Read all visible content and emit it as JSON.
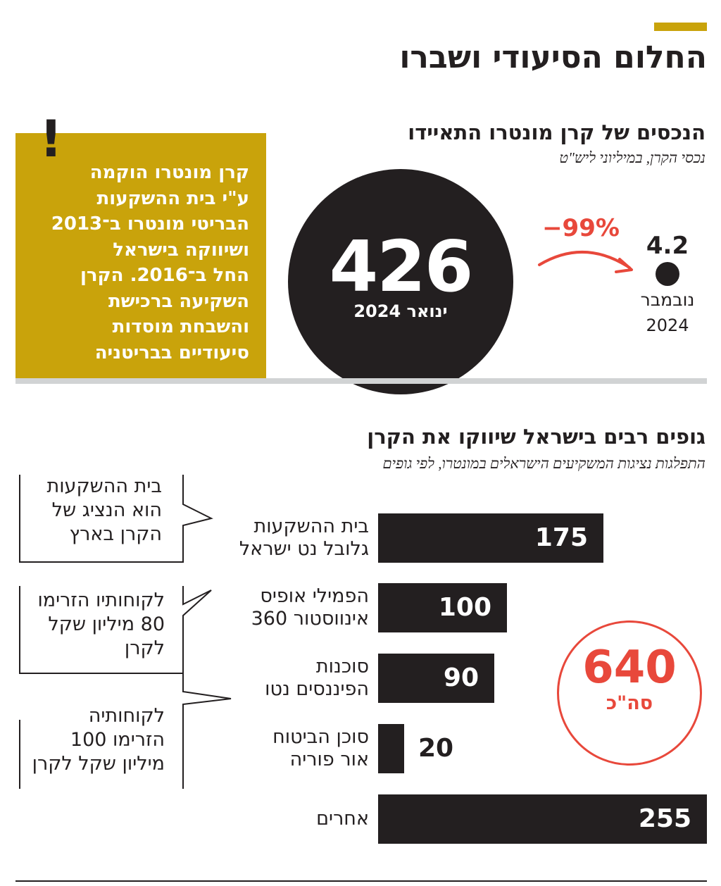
{
  "header": {
    "title": "החלום הסיעודי ושברו",
    "accent_color": "#c9a30b"
  },
  "info_box": {
    "exclamation": "!",
    "lines": [
      "קרן מונטרו הוקמה",
      "ע\"י בית ההשקעות",
      "הבריטי מונטרו ב־2013",
      "ושיווקה בישראל",
      "החל ב־2016. הקרן",
      "השקיעה ברכישת",
      "והשבחת מוסדות",
      "סיעודיים בבריטניה"
    ]
  },
  "section1": {
    "title": "הנכסים של קרן מונטרו התאיידו",
    "subtitle": "נכסי הקרן, במיליוני ליש\"ט"
  },
  "section2": {
    "title": "גופים רבים בישראל שיווקו את הקרן",
    "subtitle": "התפלגות נציגות המשקיעים הישראלים במונטרו, לפי גופים"
  },
  "callouts": [
    {
      "lines": [
        "בית ההשקעות",
        "הוא הנציג של",
        "הקרן בארץ"
      ]
    },
    {
      "lines": [
        "לקוחותיו הזרימו",
        "80 מיליון שקל",
        "לקרן"
      ]
    },
    {
      "lines": [
        "לקוחותיה",
        "הזרימו 100",
        "מיליון שקל לקרן"
      ]
    }
  ],
  "chart_data": [
    {
      "type": "bubble-comparison",
      "title": "הנכסים של קרן מונטרו התאיידו",
      "subtitle": "נכסי הקרן, במיליוני ליש\"ט",
      "points": [
        {
          "value": 426,
          "value_label": "426",
          "date_label": "ינואר 2024"
        },
        {
          "value": 4.2,
          "value_label": "4.2",
          "date_lines": [
            "נובמבר",
            "2024"
          ]
        }
      ],
      "change_label": "−99%",
      "change_color": "#e8483b",
      "circle_color": "#231f20"
    },
    {
      "type": "bar",
      "orientation": "horizontal",
      "title": "גופים רבים בישראל שיווקו את הקרן",
      "subtitle": "התפלגות נציגות המשקיעים הישראלים במונטרו, לפי גופים",
      "bar_color": "#231f20",
      "categories": [
        [
          "בית ההשקעות",
          "גלובל נט ישראל"
        ],
        [
          "הפמילי אופיס",
          "אינווסטור 360"
        ],
        [
          "סוכנות",
          "הפיננסים נטו"
        ],
        [
          "סוכן הביטוח",
          "אור פוריה"
        ],
        [
          "אחרים"
        ]
      ],
      "values": [
        175,
        100,
        90,
        20,
        255
      ],
      "total": {
        "value": 640,
        "label": "סה\"כ",
        "color": "#e8483b"
      }
    }
  ]
}
